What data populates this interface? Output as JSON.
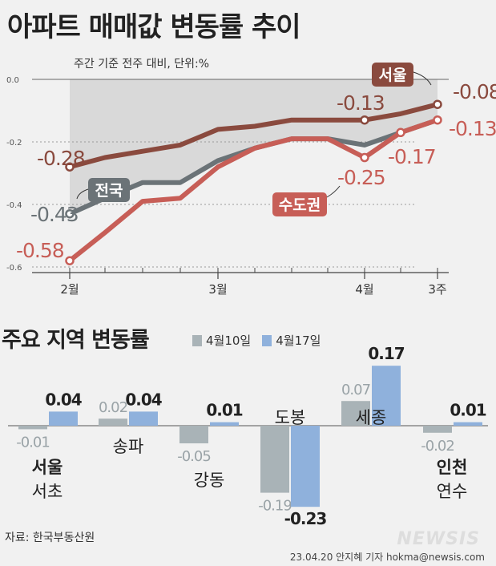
{
  "header": {
    "title": "아파트 매매값 변동률 추이",
    "subtitle": "주요 지역 변동률"
  },
  "colors": {
    "seoul": "#8a4a3e",
    "nation": "#6b7377",
    "metro": "#c75e57",
    "bar_prev": "#a9b3b7",
    "bar_curr": "#8fb1dc",
    "area": "#d6d6d6"
  },
  "chart_data": [
    {
      "type": "line",
      "note": "주간 기준 전주 대비, 단위:%",
      "yticks": [
        "0.0",
        "-0.2",
        "-0.4",
        "-0.6"
      ],
      "ylim": [
        -0.6,
        0.0
      ],
      "xticks": [
        "2월",
        "3월",
        "4월",
        "3주"
      ],
      "x": [
        0,
        1,
        2,
        3,
        4,
        5,
        6,
        7,
        8,
        9,
        10
      ],
      "series": [
        {
          "name": "서울",
          "values": [
            -0.28,
            -0.25,
            -0.23,
            -0.21,
            -0.16,
            -0.15,
            -0.13,
            -0.13,
            -0.13,
            -0.11,
            -0.08
          ]
        },
        {
          "name": "전국",
          "values": [
            -0.43,
            -0.38,
            -0.33,
            -0.33,
            -0.26,
            -0.22,
            -0.19,
            -0.19,
            -0.21,
            -0.17,
            -0.13
          ]
        },
        {
          "name": "수도권",
          "values": [
            -0.58,
            -0.49,
            -0.39,
            -0.38,
            -0.28,
            -0.22,
            -0.19,
            -0.19,
            -0.25,
            -0.17,
            -0.13
          ]
        }
      ],
      "value_labels": [
        "-0.28",
        "-0.43",
        "-0.58",
        "-0.13",
        "-0.25",
        "-0.17",
        "-0.08",
        "-0.13"
      ]
    },
    {
      "type": "bar",
      "legend": [
        "4월10일",
        "4월17일"
      ],
      "categories": [
        "서울 서초",
        "송파",
        "강동",
        "도봉",
        "세종",
        "인천 연수"
      ],
      "series": [
        {
          "name": "4월10일",
          "values": [
            -0.01,
            0.02,
            -0.05,
            -0.19,
            0.07,
            -0.02
          ]
        },
        {
          "name": "4월17일",
          "values": [
            0.04,
            0.04,
            0.01,
            -0.23,
            0.17,
            0.01
          ]
        }
      ],
      "labels_prev": [
        "-0.01",
        "0.02",
        "-0.05",
        "-0.19",
        "0.07",
        "-0.02"
      ],
      "labels_curr": [
        "0.04",
        "0.04",
        "0.01",
        "-0.23",
        "0.17",
        "0.01"
      ],
      "category_lines": [
        [
          "서울",
          "서초"
        ],
        [
          "송파"
        ],
        [
          "강동"
        ],
        [
          "도봉"
        ],
        [
          "세종"
        ],
        [
          "인천",
          "연수"
        ]
      ]
    }
  ],
  "footer": {
    "source": "자료: 한국부동산원",
    "credit": "23.04.20 안지혜 기자 hokma@newsis.com",
    "logo": "NEWSIS"
  }
}
